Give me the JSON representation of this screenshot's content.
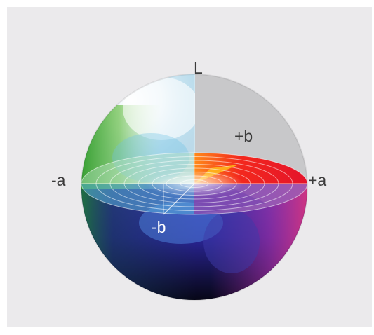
{
  "diagram": {
    "type": "Lab color space sphere",
    "labels": {
      "L": "L",
      "plus_b": "+b",
      "minus_a": "-a",
      "plus_a": "+a",
      "minus_b": "-b"
    },
    "colors": {
      "background": "#ebeaec",
      "cutaway": "#c8c8ca",
      "label": "#3b3b3b"
    }
  }
}
